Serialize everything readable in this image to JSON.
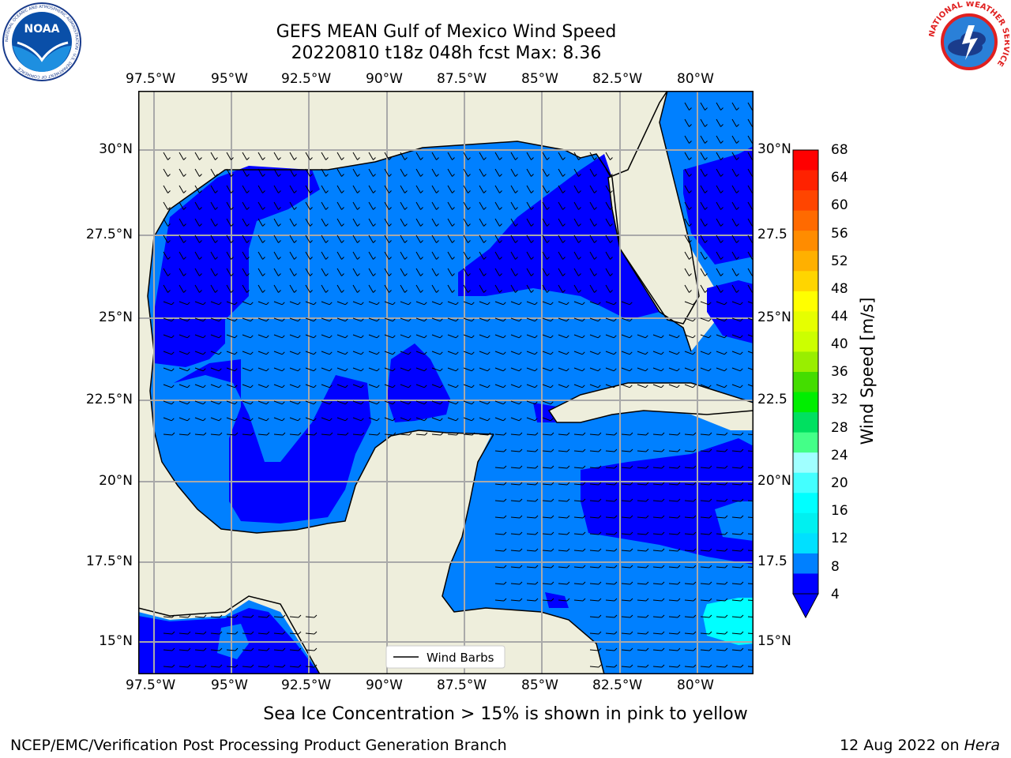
{
  "header": {
    "title_line1": "GEFS MEAN Gulf of Mexico Wind Speed",
    "title_line2": "20220810 t18z 048h fcst   Max: 8.36"
  },
  "logos": {
    "noaa_text": "NOAA",
    "noaa_ring_text": "NATIONAL OCEANIC AND ATMOSPHERIC ADMINISTRATION · U.S. DEPARTMENT OF COMMERCE",
    "nws_ring_text": "NATIONAL WEATHER SERVICE"
  },
  "map": {
    "lon_ticks": [
      "97.5°W",
      "95°W",
      "92.5°W",
      "90°W",
      "87.5°W",
      "85°W",
      "82.5°W",
      "80°W"
    ],
    "lat_ticks_left": [
      "30°N",
      "27.5°N",
      "25°N",
      "22.5°N",
      "20°N",
      "17.5°N",
      "15°N"
    ],
    "lat_ticks_right": [
      "30°N",
      "27.5",
      "25°N",
      "22.5",
      "20°N",
      "17.5",
      "15°N"
    ],
    "legend_label": "Wind Barbs",
    "colors": {
      "land": "#eeeedc",
      "level1": "#0080ff",
      "level2": "#0000ff",
      "level3": "#00ffff",
      "grid": "#a9a9a9"
    }
  },
  "colorbar": {
    "label": "Wind Speed [m/s]",
    "ticks": [
      "68",
      "64",
      "60",
      "56",
      "52",
      "48",
      "44",
      "40",
      "36",
      "32",
      "28",
      "24",
      "20",
      "16",
      "12",
      "8",
      "4"
    ],
    "colors": [
      "#ff0000",
      "#ff2200",
      "#ff4500",
      "#ff6a00",
      "#ff8c00",
      "#ffb000",
      "#ffd500",
      "#ffff00",
      "#e6ff00",
      "#ccff00",
      "#99ee00",
      "#44dd00",
      "#00ee00",
      "#00e060",
      "#44ff88",
      "#a0ffff",
      "#44ffff",
      "#00ffff",
      "#00f0f0",
      "#00e0ff",
      "#0080ff",
      "#0000ff"
    ]
  },
  "footer": {
    "note": "Sea Ice Concentration > 15% is shown in pink to yellow",
    "credit": "NCEP/EMC/Verification Post Processing Product Generation Branch",
    "date": "12 Aug 2022 on ",
    "machine": "Hera"
  }
}
